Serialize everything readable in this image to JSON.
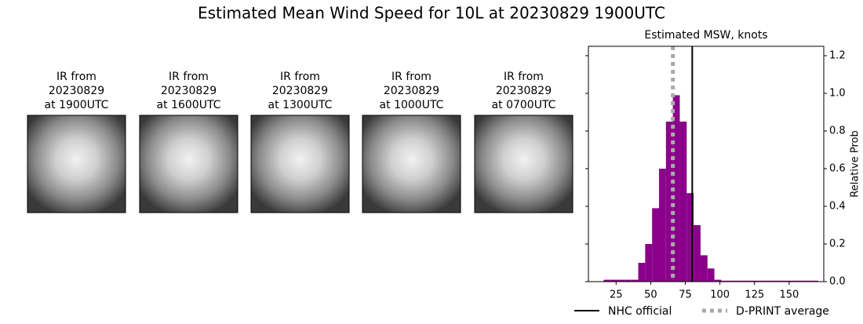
{
  "title": "Estimated Mean Wind Speed for 10L at 20230829 1900UTC",
  "panels": [
    {
      "lines": [
        "IR from",
        "20230829",
        "at 1900UTC"
      ]
    },
    {
      "lines": [
        "IR from",
        "20230829",
        "at 1600UTC"
      ]
    },
    {
      "lines": [
        "IR from",
        "20230829",
        "at 1300UTC"
      ]
    },
    {
      "lines": [
        "IR from",
        "20230829",
        "at 1000UTC"
      ]
    },
    {
      "lines": [
        "IR from",
        "20230829",
        "at 0700UTC"
      ]
    }
  ],
  "chart_data": {
    "type": "histogram",
    "title": "Estimated MSW, knots",
    "ylabel": "Relative Prob",
    "color": "#8b008b",
    "bins": [
      16,
      21,
      26,
      31,
      36,
      41,
      46,
      51,
      56,
      61,
      66,
      71,
      76,
      81,
      86,
      91,
      96,
      101,
      106,
      111,
      116,
      121,
      126,
      131,
      136,
      141,
      146,
      151,
      156,
      161,
      166,
      171
    ],
    "values": [
      0.01,
      0.01,
      0.01,
      0.01,
      0.01,
      0.1,
      0.2,
      0.39,
      0.6,
      0.85,
      0.99,
      0.85,
      0.47,
      0.3,
      0.14,
      0.07,
      0.01,
      0.005,
      0.005,
      0.005,
      0.005,
      0.005,
      0.005,
      0.005,
      0.005,
      0.005,
      0.005,
      0.005,
      0.005,
      0.005,
      0.005
    ],
    "xlim": [
      5,
      175
    ],
    "xticks": [
      25,
      50,
      75,
      100,
      125,
      150
    ],
    "ylim": [
      0,
      1.25
    ],
    "yticks": [
      {
        "value": 0,
        "label": "0.0"
      },
      0.2,
      0.4,
      0.6,
      0.8,
      {
        "value": 1,
        "label": "1.0"
      },
      1.2
    ],
    "reference_lines": [
      {
        "name": "NHC official",
        "value": 80,
        "color": "#000000",
        "style": "solid"
      },
      {
        "name": "D-PRINT average",
        "value": 66,
        "color": "#aaaaaa",
        "style": "dotted"
      }
    ]
  }
}
